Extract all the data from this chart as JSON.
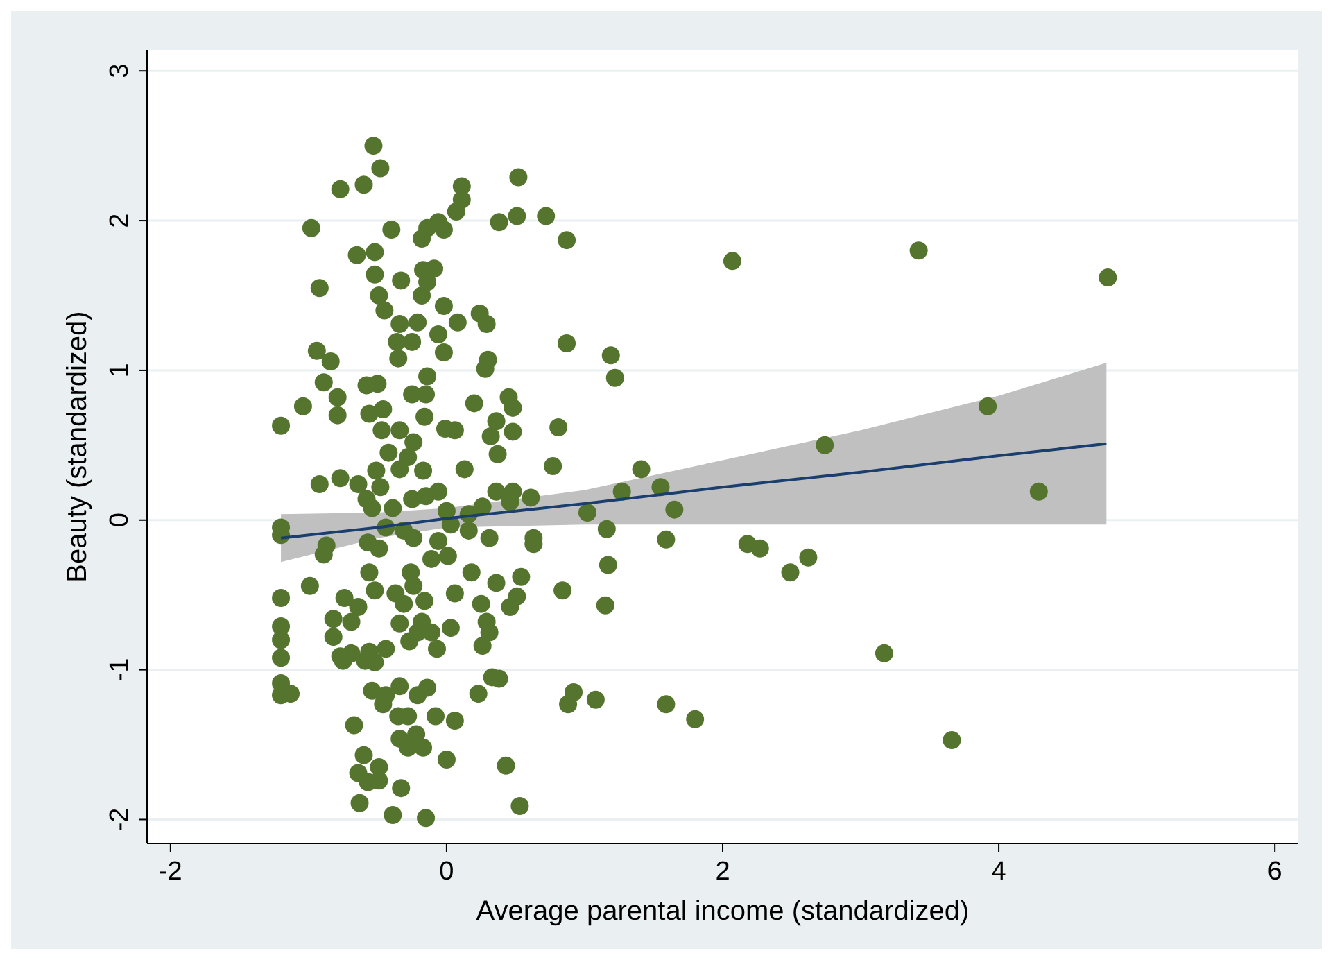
{
  "chart_data": {
    "type": "scatter",
    "xlabel": "Average parental income (standardized)",
    "ylabel": "Beauty (standardized)",
    "xlim": [
      -2.17,
      6.17
    ],
    "ylim": [
      -2.16,
      3.14
    ],
    "xticks": [
      -2,
      0,
      2,
      4,
      6
    ],
    "yticks": [
      -2,
      -1,
      0,
      1,
      2,
      3
    ],
    "grid": "y",
    "series": [
      {
        "type": "scatter",
        "color": "#55752f",
        "marker": "circle",
        "x": [
          2.07,
          3.42,
          4.79,
          3.92,
          4.29,
          2.74,
          3.17,
          3.66,
          1.59,
          1.8,
          2.18,
          2.27,
          2.49,
          2.62,
          1.59,
          1.65,
          1.55,
          1.41,
          1.27,
          1.16,
          1.02,
          1.17,
          1.15,
          1.08,
          0.92,
          0.88,
          0.87,
          0.87,
          1.19,
          1.22,
          0.84,
          0.81,
          0.77,
          0.72,
          0.52,
          0.38,
          0.51,
          0.43,
          0.53,
          -1.2,
          -1.2,
          -1.2,
          -1.2,
          -1.2,
          -1.2,
          -1.2,
          -1.2,
          -1.2,
          -1.13,
          -0.98,
          -0.92,
          -0.94,
          -0.84,
          -0.89,
          -1.04,
          -0.79,
          -0.79,
          -0.92,
          -0.77,
          -0.64,
          -0.77,
          -0.6,
          -0.53,
          -0.48,
          -0.65,
          -0.52,
          -0.4,
          -0.52,
          -0.49,
          -0.45,
          -0.33,
          -0.17,
          -0.18,
          -0.14,
          -0.06,
          -0.02,
          0.07,
          0.11,
          0.11,
          -0.34,
          -0.21,
          -0.18,
          -0.14,
          -0.09,
          -0.02,
          0.08,
          -0.06,
          -0.25,
          -0.36,
          -0.35,
          -0.02,
          -0.14,
          0.24,
          0.29,
          0.3,
          0.28,
          0.2,
          0.45,
          0.48,
          0.36,
          0.32,
          0.48,
          0.37,
          0.13,
          0.06,
          -0.01,
          -0.16,
          -0.15,
          -0.25,
          -0.5,
          -0.58,
          -0.46,
          -0.56,
          -0.47,
          -0.34,
          -0.24,
          -0.28,
          -0.42,
          -0.51,
          -0.34,
          -0.17,
          -0.48,
          -0.58,
          -0.54,
          -0.39,
          -0.25,
          -0.15,
          -0.06,
          0.0,
          0.16,
          0.26,
          0.36,
          0.48,
          0.61,
          0.46,
          0.63,
          0.63,
          0.31,
          0.16,
          0.03,
          -0.06,
          0.01,
          -0.11,
          -0.24,
          -0.44,
          -0.57,
          -0.49,
          -0.31,
          -0.89,
          -0.99,
          -0.87,
          -0.56,
          -0.52,
          -0.64,
          -0.74,
          -0.82,
          -0.69,
          -0.82,
          -0.69,
          -0.59,
          -0.52,
          -0.44,
          -0.34,
          -0.31,
          -0.37,
          -0.24,
          -0.26,
          -0.16,
          -0.18,
          -0.27,
          -0.21,
          -0.11,
          -0.07,
          0.03,
          0.06,
          0.18,
          0.25,
          0.29,
          0.31,
          0.26,
          0.36,
          0.46,
          0.51,
          0.54,
          0.33,
          0.38,
          0.23,
          0.06,
          -0.08,
          0.0,
          -0.21,
          -0.14,
          -0.34,
          -0.44,
          -0.54,
          -0.46,
          -0.35,
          -0.28,
          -0.67,
          -0.34,
          -0.22,
          -0.17,
          -0.28,
          -0.49,
          -0.6,
          -0.64,
          -0.57,
          -0.49,
          -0.63,
          -0.39,
          -0.15,
          -0.33,
          -0.75,
          -0.56,
          -0.77
        ],
        "values": [
          1.73,
          1.8,
          1.62,
          0.76,
          0.19,
          0.5,
          -0.89,
          -1.47,
          -1.23,
          -1.33,
          -0.16,
          -0.19,
          -0.35,
          -0.25,
          -0.13,
          0.07,
          0.22,
          0.34,
          0.19,
          -0.06,
          0.05,
          -0.3,
          -0.57,
          -1.2,
          -1.15,
          -1.23,
          1.87,
          1.18,
          1.1,
          0.95,
          -0.47,
          0.62,
          0.36,
          2.03,
          2.29,
          1.99,
          2.03,
          -1.64,
          -1.91,
          0.63,
          -0.05,
          -0.1,
          -0.52,
          -0.71,
          -0.8,
          -0.92,
          -1.09,
          -1.17,
          -1.16,
          1.95,
          1.55,
          1.13,
          1.06,
          0.92,
          0.76,
          0.82,
          0.7,
          0.24,
          0.28,
          0.24,
          2.21,
          2.24,
          2.5,
          2.35,
          1.77,
          1.79,
          1.94,
          1.64,
          1.5,
          1.4,
          1.6,
          1.67,
          1.88,
          1.95,
          1.99,
          1.94,
          2.06,
          2.23,
          2.14,
          1.31,
          1.32,
          1.5,
          1.59,
          1.68,
          1.43,
          1.32,
          1.24,
          1.19,
          1.19,
          1.08,
          1.12,
          0.96,
          1.38,
          1.31,
          1.07,
          1.01,
          0.78,
          0.82,
          0.75,
          0.66,
          0.56,
          0.59,
          0.44,
          0.34,
          0.6,
          0.61,
          0.69,
          0.84,
          0.84,
          0.91,
          0.9,
          0.74,
          0.71,
          0.6,
          0.6,
          0.52,
          0.42,
          0.45,
          0.33,
          0.34,
          0.33,
          0.22,
          0.14,
          0.08,
          0.08,
          0.14,
          0.16,
          0.19,
          0.06,
          0.04,
          0.09,
          0.19,
          0.19,
          0.15,
          0.12,
          -0.12,
          -0.16,
          -0.12,
          -0.07,
          -0.03,
          -0.14,
          -0.24,
          -0.26,
          -0.12,
          -0.05,
          -0.15,
          -0.19,
          -0.07,
          -0.23,
          -0.44,
          -0.17,
          -0.35,
          -0.47,
          -0.58,
          -0.52,
          -0.66,
          -0.68,
          -0.78,
          -0.89,
          -0.94,
          -0.95,
          -0.86,
          -0.69,
          -0.56,
          -0.49,
          -0.44,
          -0.35,
          -0.54,
          -0.68,
          -0.81,
          -0.75,
          -0.75,
          -0.86,
          -0.72,
          -0.49,
          -0.35,
          -0.56,
          -0.68,
          -0.75,
          -0.84,
          -0.42,
          -0.58,
          -0.51,
          -0.38,
          -1.05,
          -1.06,
          -1.16,
          -1.34,
          -1.31,
          -1.6,
          -1.17,
          -1.12,
          -1.11,
          -1.17,
          -1.14,
          -1.23,
          -1.31,
          -1.31,
          -1.37,
          -1.46,
          -1.43,
          -1.52,
          -1.52,
          -1.65,
          -1.57,
          -1.69,
          -1.75,
          -1.74,
          -1.89,
          -1.97,
          -1.99,
          -1.79,
          -0.94,
          -0.88,
          -0.91
        ]
      },
      {
        "type": "line",
        "color": "#1a3e6e",
        "x": [
          -1.2,
          -0.5,
          0,
          1,
          2,
          3,
          4,
          4.78
        ],
        "values": [
          -0.12,
          -0.05,
          0.01,
          0.11,
          0.22,
          0.32,
          0.43,
          0.51
        ],
        "lower": [
          -0.28,
          -0.12,
          -0.05,
          -0.03,
          -0.03,
          -0.03,
          -0.03,
          -0.03
        ],
        "upper": [
          0.04,
          0.05,
          0.08,
          0.2,
          0.4,
          0.6,
          0.83,
          1.05
        ]
      }
    ]
  }
}
